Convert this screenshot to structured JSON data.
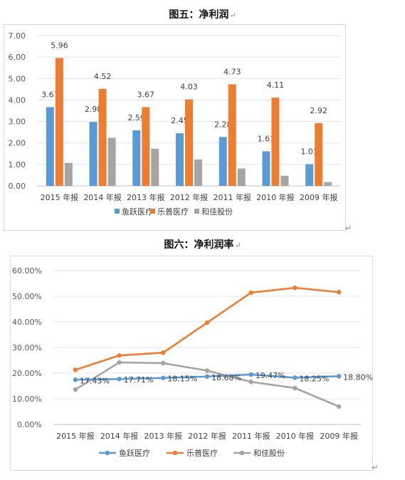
{
  "figure5": {
    "title": "图五：净利润",
    "para_mark": "↵"
  },
  "figure6": {
    "title": "图六：净利润率",
    "para_mark": "↵"
  },
  "stray_marks": [
    "↵",
    "↵"
  ],
  "chart_data": [
    {
      "type": "bar",
      "title": "",
      "xlabel": "",
      "ylabel": "",
      "ylim": [
        0,
        7
      ],
      "yticks": [
        "0.00",
        "1.00",
        "2.00",
        "3.00",
        "4.00",
        "5.00",
        "6.00",
        "7.00"
      ],
      "grid": true,
      "legend": "bottom",
      "categories": [
        "2015 年报",
        "2014 年报",
        "2013 年报",
        "2012 年报",
        "2011 年报",
        "2010 年报",
        "2009 年报"
      ],
      "series": [
        {
          "name": "鱼跃医疗",
          "color": "#5b9bd5",
          "values": [
            3.67,
            2.98,
            2.59,
            2.45,
            2.28,
            1.61,
            1.01
          ],
          "labels": [
            "3.67",
            "2.98",
            "2.59",
            "2.45",
            "2.28",
            "1.61",
            "1.01"
          ]
        },
        {
          "name": "乐普医疗",
          "color": "#ed7d31",
          "values": [
            5.96,
            4.52,
            3.67,
            4.03,
            4.73,
            4.11,
            2.92
          ],
          "labels": [
            "5.96",
            "4.52",
            "3.67",
            "4.03",
            "4.73",
            "4.11",
            "2.92"
          ]
        },
        {
          "name": "和佳股份",
          "color": "#a5a5a5",
          "values": [
            1.07,
            2.24,
            1.73,
            1.23,
            0.81,
            0.47,
            0.18
          ],
          "labels": []
        }
      ]
    },
    {
      "type": "line",
      "title": "",
      "xlabel": "",
      "ylabel": "",
      "ylim": [
        0,
        60
      ],
      "yticks": [
        "0.00%",
        "10.00%",
        "20.00%",
        "30.00%",
        "40.00%",
        "50.00%",
        "60.00%"
      ],
      "grid": true,
      "legend": "bottom",
      "categories": [
        "2015 年报",
        "2014 年报",
        "2013 年报",
        "2012 年报",
        "2011 年报",
        "2010 年报",
        "2009 年报"
      ],
      "series": [
        {
          "name": "鱼跃医疗",
          "color": "#5b9bd5",
          "values": [
            17.43,
            17.71,
            18.15,
            18.68,
            19.47,
            18.25,
            18.8
          ],
          "labels": [
            "17.43%",
            "17.71%",
            "18.15%",
            "18.68%",
            "19.47%",
            "18.25%",
            "18.80%"
          ]
        },
        {
          "name": "乐普医疗",
          "color": "#ed7d31",
          "values": [
            21.3,
            26.9,
            28.0,
            39.7,
            51.4,
            53.3,
            51.6
          ],
          "labels": []
        },
        {
          "name": "和佳股份",
          "color": "#a5a5a5",
          "values": [
            13.6,
            24.2,
            23.9,
            21.0,
            16.6,
            14.2,
            7.0
          ],
          "labels": []
        }
      ]
    }
  ]
}
